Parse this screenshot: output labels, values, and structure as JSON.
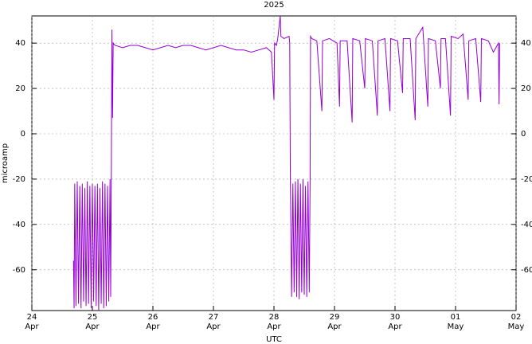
{
  "chart_data": {
    "type": "line",
    "title": "2025",
    "xlabel": "UTC",
    "ylabel": "microamp",
    "color": "#9400d3",
    "grid": true,
    "x": [
      "2025-04-24T16:30",
      "2025-04-24T16:45",
      "2025-04-24T17:00",
      "2025-04-24T17:30",
      "2025-04-24T18:00",
      "2025-04-24T18:30",
      "2025-04-24T19:00",
      "2025-04-24T19:30",
      "2025-04-24T20:00",
      "2025-04-24T20:30",
      "2025-04-24T21:00",
      "2025-04-24T21:30",
      "2025-04-24T22:00",
      "2025-04-24T22:30",
      "2025-04-24T23:00",
      "2025-04-24T23:30",
      "2025-04-25T00:00",
      "2025-04-25T00:30",
      "2025-04-25T01:00",
      "2025-04-25T01:30",
      "2025-04-25T02:00",
      "2025-04-25T02:30",
      "2025-04-25T03:00",
      "2025-04-25T03:30",
      "2025-04-25T04:00",
      "2025-04-25T04:30",
      "2025-04-25T05:00",
      "2025-04-25T05:30",
      "2025-04-25T06:00",
      "2025-04-25T06:30",
      "2025-04-25T07:00",
      "2025-04-25T07:15",
      "2025-04-25T07:30",
      "2025-04-25T07:45",
      "2025-04-25T08:00",
      "2025-04-25T08:15",
      "2025-04-25T09:00",
      "2025-04-25T12:00",
      "2025-04-25T15:00",
      "2025-04-25T18:00",
      "2025-04-25T21:00",
      "2025-04-26T00:00",
      "2025-04-26T03:00",
      "2025-04-26T06:00",
      "2025-04-26T09:00",
      "2025-04-26T12:00",
      "2025-04-26T15:00",
      "2025-04-26T18:00",
      "2025-04-26T21:00",
      "2025-04-27T00:00",
      "2025-04-27T03:00",
      "2025-04-27T06:00",
      "2025-04-27T09:00",
      "2025-04-27T12:00",
      "2025-04-27T15:00",
      "2025-04-27T18:00",
      "2025-04-27T21:00",
      "2025-04-27T23:00",
      "2025-04-28T00:00",
      "2025-04-28T00:15",
      "2025-04-28T01:00",
      "2025-04-28T01:30",
      "2025-04-28T02:30",
      "2025-04-28T02:45",
      "2025-04-28T04:00",
      "2025-04-28T06:00",
      "2025-04-28T06:15",
      "2025-04-28T06:30",
      "2025-04-28T07:00",
      "2025-04-28T07:30",
      "2025-04-28T08:00",
      "2025-04-28T08:30",
      "2025-04-28T09:00",
      "2025-04-28T09:30",
      "2025-04-28T10:00",
      "2025-04-28T10:30",
      "2025-04-28T11:00",
      "2025-04-28T11:30",
      "2025-04-28T12:00",
      "2025-04-28T12:30",
      "2025-04-28T13:00",
      "2025-04-28T13:30",
      "2025-04-28T14:00",
      "2025-04-28T14:20",
      "2025-04-28T14:30",
      "2025-04-28T15:00",
      "2025-04-28T17:00",
      "2025-04-28T19:00",
      "2025-04-28T19:15",
      "2025-04-28T22:00",
      "2025-04-29T01:00",
      "2025-04-29T02:00",
      "2025-04-29T02:15",
      "2025-04-29T05:00",
      "2025-04-29T07:00",
      "2025-04-29T07:15",
      "2025-04-29T10:00",
      "2025-04-29T12:00",
      "2025-04-29T12:15",
      "2025-04-29T15:00",
      "2025-04-29T17:00",
      "2025-04-29T17:15",
      "2025-04-29T20:00",
      "2025-04-29T22:00",
      "2025-04-29T22:15",
      "2025-04-30T01:00",
      "2025-04-30T03:00",
      "2025-04-30T03:15",
      "2025-04-30T06:00",
      "2025-04-30T08:00",
      "2025-04-30T08:15",
      "2025-04-30T11:00",
      "2025-04-30T13:00",
      "2025-04-30T13:15",
      "2025-04-30T16:00",
      "2025-04-30T18:00",
      "2025-04-30T18:15",
      "2025-04-30T20:00",
      "2025-04-30T22:00",
      "2025-04-30T22:15",
      "2025-05-01T01:00",
      "2025-05-01T03:00",
      "2025-05-01T05:00",
      "2025-05-01T05:15",
      "2025-05-01T08:00",
      "2025-05-01T10:00",
      "2025-05-01T10:15",
      "2025-05-01T13:00",
      "2025-05-01T15:00",
      "2025-05-01T17:00",
      "2025-05-01T17:15",
      "2025-05-01T17:30"
    ],
    "values": [
      -56,
      -77,
      -22,
      -76,
      -21,
      -75,
      -23,
      -77,
      -22,
      -74,
      -24,
      -76,
      -21,
      -75,
      -23,
      -77,
      -22,
      -74,
      -23,
      -76,
      -22,
      -78,
      -24,
      -75,
      -21,
      -77,
      -22,
      -76,
      -23,
      -74,
      -20,
      -72,
      -20,
      46,
      7,
      40,
      39,
      38,
      39,
      39,
      38,
      37,
      38,
      39,
      38,
      39,
      39,
      38,
      37,
      38,
      39,
      38,
      37,
      37,
      36,
      37,
      38,
      36,
      15,
      40,
      39,
      42,
      52,
      43,
      42,
      43,
      40,
      -20,
      -72,
      -22,
      -70,
      -21,
      -72,
      -20,
      -73,
      -22,
      -70,
      -20,
      -71,
      -23,
      -72,
      -21,
      -70,
      -20,
      43,
      42,
      41,
      10,
      41,
      42,
      40,
      12,
      41,
      41,
      5,
      42,
      41,
      20,
      42,
      41,
      8,
      41,
      42,
      10,
      42,
      41,
      18,
      42,
      42,
      6,
      42,
      47,
      12,
      42,
      41,
      20,
      42,
      42,
      8,
      43,
      42,
      44,
      15,
      41,
      42,
      14,
      42,
      41,
      36,
      40,
      13,
      40
    ],
    "xlim": [
      "2025-04-24T00:00",
      "2025-05-02T00:00"
    ],
    "xticks": [
      {
        "value": "2025-04-24",
        "label": [
          "24",
          "Apr"
        ]
      },
      {
        "value": "2025-04-25",
        "label": [
          "25",
          "Apr"
        ]
      },
      {
        "value": "2025-04-26",
        "label": [
          "26",
          "Apr"
        ]
      },
      {
        "value": "2025-04-27",
        "label": [
          "27",
          "Apr"
        ]
      },
      {
        "value": "2025-04-28",
        "label": [
          "28",
          "Apr"
        ]
      },
      {
        "value": "2025-04-29",
        "label": [
          "29",
          "Apr"
        ]
      },
      {
        "value": "2025-04-30",
        "label": [
          "30",
          "Apr"
        ]
      },
      {
        "value": "2025-05-01",
        "label": [
          "01",
          "May"
        ]
      },
      {
        "value": "2025-05-02",
        "label": [
          "02",
          "May"
        ]
      }
    ],
    "ylim": [
      -78,
      52
    ],
    "yticks": [
      -60,
      -40,
      -20,
      0,
      20,
      40
    ],
    "y2lim": [
      -78,
      52
    ],
    "y2ticks": [
      -60,
      -40,
      -20,
      0,
      20,
      40
    ]
  }
}
